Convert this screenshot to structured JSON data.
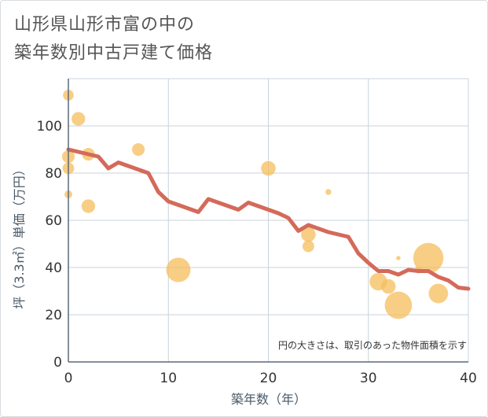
{
  "title": {
    "line1": "山形県山形市富の中の",
    "line2": "築年数別中古戸建て価格"
  },
  "chart_data": {
    "type": "scatter",
    "xlabel": "築年数（年）",
    "ylabel": "坪（3.3㎡）単価（万円）",
    "xlim": [
      0,
      40
    ],
    "ylim": [
      0,
      120
    ],
    "x_ticks": [
      0,
      10,
      20,
      30,
      40
    ],
    "y_ticks": [
      0,
      20,
      40,
      60,
      80,
      100
    ],
    "grid": true,
    "note": "円の大きさは、取引のあった物件面積を示す",
    "colors": {
      "bubble": "#f5be5c",
      "line": "#d46a5a",
      "grid": "#c8d3dc"
    },
    "bubbles": [
      {
        "x": 0,
        "y": 113,
        "size": 2.2
      },
      {
        "x": 0,
        "y": 87,
        "size": 2.6
      },
      {
        "x": 0,
        "y": 82,
        "size": 2.4
      },
      {
        "x": 0,
        "y": 71,
        "size": 1.6
      },
      {
        "x": 1,
        "y": 103,
        "size": 2.8
      },
      {
        "x": 2,
        "y": 88,
        "size": 2.6
      },
      {
        "x": 2,
        "y": 66,
        "size": 2.8
      },
      {
        "x": 7,
        "y": 90,
        "size": 2.6
      },
      {
        "x": 11,
        "y": 39,
        "size": 5.0
      },
      {
        "x": 20,
        "y": 82,
        "size": 3.0
      },
      {
        "x": 26,
        "y": 72,
        "size": 1.2
      },
      {
        "x": 24,
        "y": 54,
        "size": 3.0
      },
      {
        "x": 24,
        "y": 49,
        "size": 2.4
      },
      {
        "x": 31,
        "y": 34,
        "size": 3.6
      },
      {
        "x": 32,
        "y": 32,
        "size": 3.0
      },
      {
        "x": 33,
        "y": 44,
        "size": 0.9
      },
      {
        "x": 33,
        "y": 24,
        "size": 5.6
      },
      {
        "x": 35,
        "y": 39,
        "size": 1.4
      },
      {
        "x": 36,
        "y": 44,
        "size": 6.2
      },
      {
        "x": 37,
        "y": 29,
        "size": 4.0
      }
    ],
    "trend_line": {
      "x": [
        0,
        1,
        2,
        3,
        4,
        5,
        6,
        7,
        8,
        9,
        10,
        11,
        12,
        13,
        14,
        15,
        16,
        17,
        18,
        19,
        20,
        21,
        22,
        23,
        24,
        25,
        26,
        27,
        28,
        29,
        30,
        31,
        32,
        33,
        34,
        35,
        36,
        37,
        38,
        39,
        40
      ],
      "y": [
        90,
        89,
        88,
        87,
        82,
        84.5,
        83,
        81.5,
        80,
        72,
        68,
        66.5,
        65,
        63.5,
        69,
        67.5,
        66,
        64.5,
        67.5,
        66,
        64.5,
        63,
        61,
        55.5,
        58,
        56.5,
        55,
        54,
        53,
        46,
        42,
        38.5,
        38.5,
        37,
        39,
        38.5,
        38.5,
        36,
        34.5,
        31.5,
        31
      ]
    }
  }
}
